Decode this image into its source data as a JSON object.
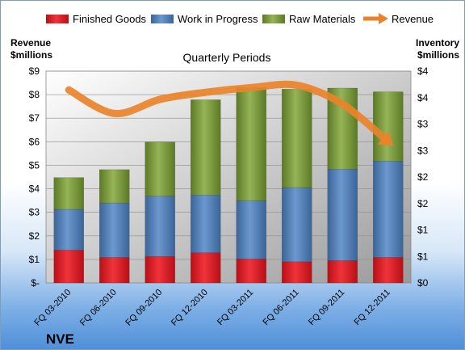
{
  "chart_data": {
    "type": "bar",
    "title": "Quarterly Periods",
    "brand": "NVE",
    "y_left_label_line1": "Revenue",
    "y_left_label_line2": "$millions",
    "y_right_label_line1": "Inventory",
    "y_right_label_line2": "$millions",
    "y_left_ticks": [
      "$-",
      "$1",
      "$2",
      "$3",
      "$4",
      "$5",
      "$6",
      "$7",
      "$8",
      "$9"
    ],
    "y_right_ticks": [
      "$0",
      "$1",
      "$1",
      "$2",
      "$2",
      "$3",
      "$3",
      "$4",
      "$4"
    ],
    "ylim_left": [
      0,
      9
    ],
    "ylim_right": [
      0,
      4
    ],
    "categories": [
      "FQ 03-2010",
      "FQ 06-2010",
      "FQ 09-2010",
      "FQ 12-2010",
      "FQ 03-2011",
      "FQ 06-2011",
      "FQ 09-2011",
      "FQ 12-2011"
    ],
    "series": [
      {
        "name": "Finished Goods",
        "color": "#e0141e",
        "values": [
          0.62,
          0.48,
          0.5,
          0.57,
          0.45,
          0.4,
          0.42,
          0.48
        ]
      },
      {
        "name": "Work in Progress",
        "color": "#4f81bd",
        "values": [
          0.77,
          1.03,
          1.14,
          1.09,
          1.1,
          1.4,
          1.73,
          1.82
        ]
      },
      {
        "name": "Raw Materials",
        "color": "#7d9a3c",
        "values": [
          0.6,
          0.63,
          1.02,
          1.8,
          2.14,
          1.86,
          1.53,
          1.31
        ]
      }
    ],
    "line_series": {
      "name": "Revenue",
      "color": "#e9832a",
      "values": [
        8.2,
        7.2,
        7.8,
        8.1,
        8.3,
        8.4,
        7.6,
        6.0
      ]
    },
    "legend_position": "top",
    "grid": true
  }
}
